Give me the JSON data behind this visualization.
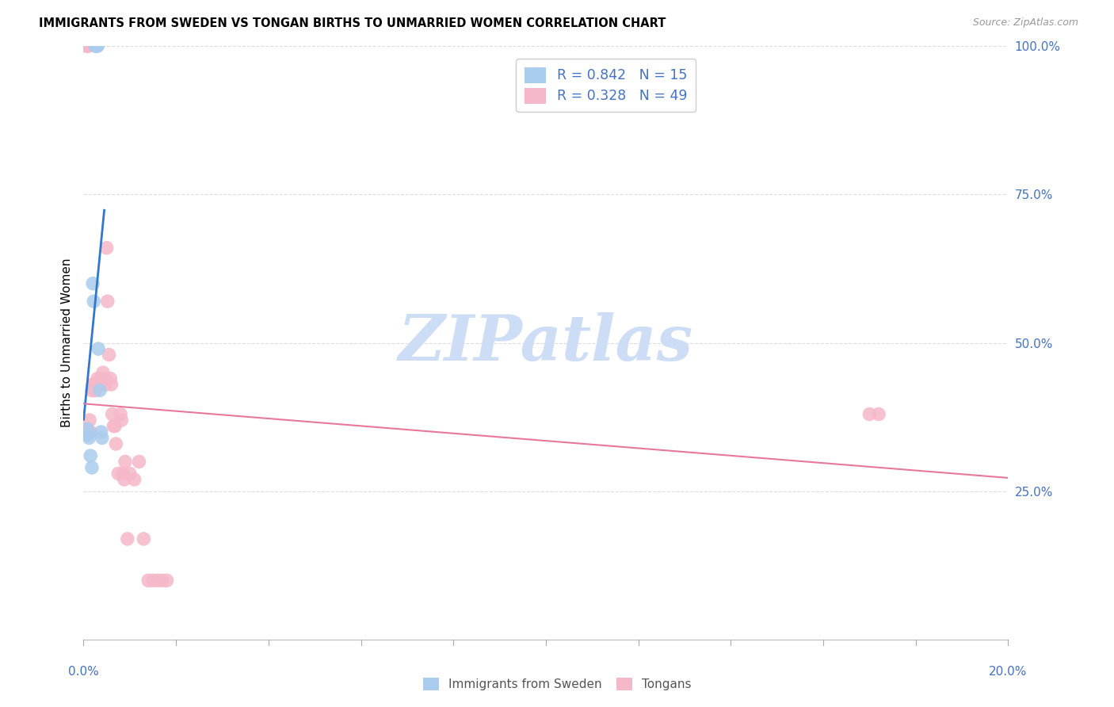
{
  "title": "IMMIGRANTS FROM SWEDEN VS TONGAN BIRTHS TO UNMARRIED WOMEN CORRELATION CHART",
  "source": "Source: ZipAtlas.com",
  "ylabel": "Births to Unmarried Women",
  "sweden_color": "#aaccee",
  "tongan_color": "#f5b8c8",
  "sweden_line_color": "#3377cc",
  "tongan_line_color": "#e8789a",
  "watermark": "ZIPatlas",
  "watermark_color": "#ccddf5",
  "sweden_R": 0.842,
  "sweden_N": 15,
  "tongan_R": 0.328,
  "tongan_N": 49,
  "label_color": "#4472c4",
  "legend_bottom": [
    "Immigrants from Sweden",
    "Tongans"
  ],
  "xmin": 0.0,
  "xmax": 0.2,
  "ymin": 0.0,
  "ymax": 1.0,
  "sweden_scatter_x": [
    0.0008,
    0.001,
    0.0012,
    0.0015,
    0.0018,
    0.002,
    0.0022,
    0.0025,
    0.0028,
    0.003,
    0.003,
    0.0032,
    0.0035,
    0.0038,
    0.004
  ],
  "sweden_scatter_y": [
    0.355,
    0.345,
    0.34,
    0.31,
    0.29,
    0.6,
    0.57,
    1.0,
    1.0,
    1.0,
    1.0,
    0.49,
    0.42,
    0.35,
    0.34
  ],
  "tongan_scatter_x": [
    0.0005,
    0.0008,
    0.001,
    0.001,
    0.0012,
    0.0013,
    0.0015,
    0.0018,
    0.002,
    0.0022,
    0.0025,
    0.0028,
    0.003,
    0.0032,
    0.0035,
    0.0038,
    0.004,
    0.0042,
    0.0045,
    0.0048,
    0.005,
    0.0052,
    0.0055,
    0.0058,
    0.006,
    0.0062,
    0.0065,
    0.0068,
    0.007,
    0.0075,
    0.008,
    0.0082,
    0.0085,
    0.0088,
    0.009,
    0.0095,
    0.01,
    0.011,
    0.012,
    0.013,
    0.014,
    0.015,
    0.016,
    0.017,
    0.018,
    0.0005,
    0.001,
    0.17,
    0.172
  ],
  "tongan_scatter_y": [
    1.0,
    1.0,
    1.0,
    0.35,
    0.35,
    0.37,
    0.35,
    0.42,
    0.43,
    0.43,
    0.42,
    0.43,
    0.44,
    0.43,
    0.43,
    0.44,
    0.44,
    0.45,
    0.44,
    0.43,
    0.66,
    0.57,
    0.48,
    0.44,
    0.43,
    0.38,
    0.36,
    0.36,
    0.33,
    0.28,
    0.38,
    0.37,
    0.28,
    0.27,
    0.3,
    0.17,
    0.28,
    0.27,
    0.3,
    0.17,
    0.1,
    0.1,
    0.1,
    0.1,
    0.1,
    0.35,
    0.35,
    0.38,
    0.38
  ]
}
